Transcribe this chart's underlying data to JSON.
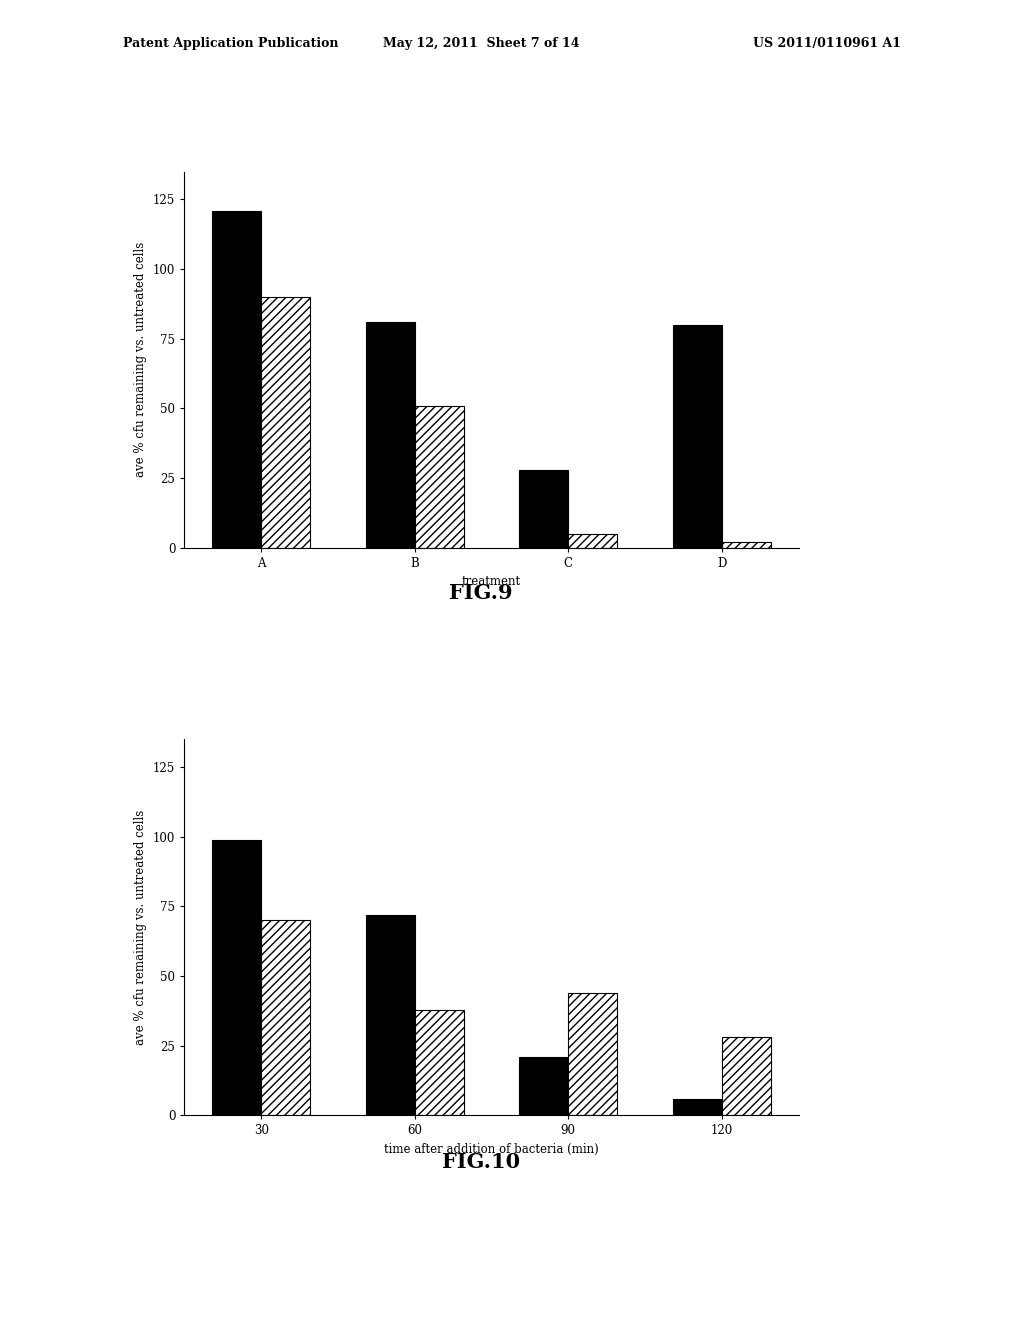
{
  "fig9": {
    "categories": [
      "A",
      "B",
      "C",
      "D"
    ],
    "black_values": [
      121,
      81,
      28,
      80
    ],
    "hatch_values": [
      90,
      51,
      5,
      2
    ],
    "xlabel": "treatment",
    "ylabel": "ave % cfu remaining vs. untreated cells",
    "ylim": [
      0,
      135
    ],
    "yticks": [
      0,
      25,
      50,
      75,
      100,
      125
    ],
    "title": "FIG.9"
  },
  "fig10": {
    "categories": [
      "30",
      "60",
      "90",
      "120"
    ],
    "black_values": [
      99,
      72,
      21,
      6
    ],
    "hatch_values": [
      70,
      38,
      44,
      28
    ],
    "xlabel": "time after addition of bacteria (min)",
    "ylabel": "ave % cfu remaining vs. untreated cells",
    "ylim": [
      0,
      135
    ],
    "yticks": [
      0,
      25,
      50,
      75,
      100,
      125
    ],
    "title": "FIG.10"
  },
  "header_left": "Patent Application Publication",
  "header_mid": "May 12, 2011  Sheet 7 of 14",
  "header_right": "US 2011/0110961 A1",
  "black_color": "#000000",
  "hatch_pattern": "////",
  "bar_width": 0.32,
  "background_color": "#ffffff",
  "font_size_label": 8.5,
  "font_size_tick": 8.5,
  "font_size_title": 15,
  "font_size_header": 9
}
